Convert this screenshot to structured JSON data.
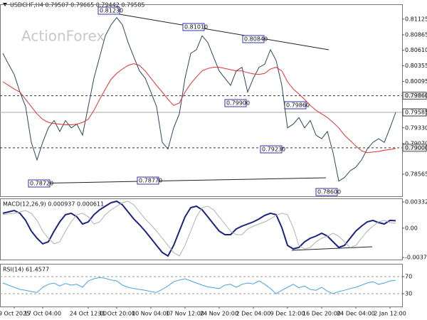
{
  "chart_data": [
    {
      "type": "line",
      "title": "USDCHF,H4  0.79507 0.79665 0.79442 0.79585",
      "watermark": "ActionForex",
      "categories": [
        null,
        null,
        "9 Oct 2025",
        null,
        null,
        null,
        null,
        "17 Oct 04:00",
        null,
        null,
        null,
        null,
        null,
        null,
        null,
        "24 Oct 12:00",
        null,
        null,
        null,
        null,
        "31 Oct 20:00",
        null,
        null,
        null,
        null,
        null,
        "10 Nov 04:00",
        null,
        null,
        null,
        null,
        null,
        "17 Nov 12:00",
        null,
        null,
        null,
        null,
        null,
        "24 Nov 20:00",
        null,
        null,
        null,
        null,
        null,
        "2 Dec 04:00",
        null,
        null,
        null,
        null,
        null,
        "9 Dec 12:00",
        null,
        null,
        null,
        null,
        null,
        "16 Dec 20:00",
        null,
        null,
        null,
        null,
        null,
        "24 Dec 04:00",
        null,
        null,
        null,
        null,
        null,
        "2 Jan 12:00",
        null
      ],
      "series": [
        {
          "color": "#2b4a5a",
          "values": [
            0.8056,
            0.8038,
            0.8021,
            0.7992,
            0.7968,
            0.7909,
            0.788,
            0.7909,
            0.7933,
            0.7945,
            0.7927,
            0.7945,
            0.7933,
            0.7939,
            0.7921,
            0.7968,
            0.8015,
            0.805,
            0.8085,
            0.8103,
            0.8115,
            0.8103,
            0.8074,
            0.805,
            0.8027,
            0.8015,
            0.7992,
            0.7968,
            0.7909,
            0.7898,
            0.7933,
            0.7956,
            0.8015,
            0.8056,
            0.8062,
            0.8085,
            0.8074,
            0.805,
            0.8027,
            0.8015,
            0.8003,
            0.8027,
            0.8033,
            0.7992,
            0.8015,
            0.8033,
            0.8038,
            0.8062,
            0.8044,
            0.8003,
            0.7933,
            0.7939,
            0.795,
            0.7933,
            0.7945,
            0.7921,
            0.7915,
            0.7927,
            0.7892,
            0.7845,
            0.7851,
            0.7862,
            0.7868,
            0.788,
            0.7898,
            0.7909,
            0.7915,
            0.7909,
            0.7933,
            0.79585
          ]
        },
        {
          "color": "#e03030",
          "values": [
            0.8009,
            0.8003,
            0.7997,
            0.7992,
            0.798,
            0.7968,
            0.7956,
            0.7947,
            0.7942,
            0.794,
            0.7939,
            0.7938,
            0.7938,
            0.7939,
            0.7942,
            0.7947,
            0.7962,
            0.798,
            0.7997,
            0.8013,
            0.8023,
            0.803,
            0.8036,
            0.8039,
            0.8036,
            0.8027,
            0.8015,
            0.8003,
            0.7992,
            0.798,
            0.797,
            0.7974,
            0.7992,
            0.8006,
            0.8017,
            0.8027,
            0.8031,
            0.8033,
            0.8033,
            0.8031,
            0.8029,
            0.8027,
            0.8027,
            0.8024,
            0.8022,
            0.8021,
            0.8023,
            0.803,
            0.8033,
            0.8027,
            0.8009,
            0.7997,
            0.7989,
            0.798,
            0.797,
            0.7962,
            0.7956,
            0.795,
            0.7942,
            0.7933,
            0.7921,
            0.7912,
            0.7903,
            0.7895,
            0.7892,
            0.7893,
            0.7894,
            0.7896,
            0.7897,
            0.7899
          ]
        }
      ],
      "ylim": [
        0.782,
        0.8137
      ],
      "yticks": [
        {
          "value": 0.81125,
          "label": "0.81125"
        },
        {
          "value": 0.80865,
          "label": "0.80865"
        },
        {
          "value": 0.8061,
          "label": "0.80610"
        },
        {
          "value": 0.80355,
          "label": "0.80355"
        },
        {
          "value": 0.80095,
          "label": "0.80095"
        },
        {
          "value": 0.7933,
          "label": "0.79330"
        },
        {
          "value": 0.7907,
          "label": "0.79070"
        },
        {
          "value": 0.78565,
          "label": "0.78565"
        }
      ],
      "levels": [
        {
          "value": 0.7986,
          "label": "0.79860"
        },
        {
          "value": 0.79,
          "label": "0.79000"
        }
      ],
      "last_price": {
        "value": 0.79585,
        "label": "0.79585"
      },
      "annotations": [
        "0.81230",
        "0.81010",
        "0.80840",
        "0.79900",
        "0.79860",
        "0.79230",
        "0.78600",
        "0.78770",
        "0.78720"
      ]
    },
    {
      "type": "line",
      "title": "MACD(12,26,9) 0.000937 0.000611",
      "series": [
        {
          "color": "#1a237e",
          "values": [
            0.00188,
            0.00206,
            0.00224,
            0.00188,
            0.00098,
            -0.00038,
            -0.00128,
            -0.002,
            -0.00173,
            -0.00038,
            0.00079,
            0.0017,
            0.00188,
            0.00143,
            0.00052,
            0.00079,
            0.0017,
            0.00233,
            0.00278,
            0.00323,
            0.00341,
            0.00296,
            0.00206,
            0.00116,
            0.00043,
            -0.00038,
            -0.00128,
            -0.00219,
            -0.00309,
            -0.00354,
            -0.00219,
            -0.00038,
            0.00143,
            0.0026,
            0.00278,
            0.00233,
            0.00143,
            0.00052,
            -0.00038,
            -0.00083,
            -0.00083,
            -0.00011,
            0.00025,
            0.00052,
            0.00079,
            0.00116,
            0.00161,
            0.00188,
            0.0017,
            7e-05,
            -0.00219,
            -0.00264,
            -0.00246,
            -0.00173,
            -0.00128,
            -0.00101,
            -0.00065,
            -0.00101,
            -0.00173,
            -0.00246,
            -0.00219,
            -0.00128,
            -0.00038,
            0.00025,
            0.00079,
            0.00098,
            0.0007,
            0.00052,
            0.00098,
            0.000937
          ]
        },
        {
          "color": "#b0b0b0",
          "values": [
            0.0017,
            0.0018,
            0.00188,
            0.00206,
            0.00224,
            0.00188,
            0.00098,
            -0.00038,
            -0.00128,
            -0.002,
            -0.00173,
            -0.00038,
            0.00079,
            0.0017,
            0.00188,
            0.00143,
            0.00052,
            0.00079,
            0.0017,
            0.00233,
            0.00278,
            0.00323,
            0.00341,
            0.00296,
            0.00206,
            0.00116,
            0.00043,
            -0.00038,
            -0.00128,
            -0.00219,
            -0.00309,
            -0.00354,
            -0.00219,
            -0.00038,
            0.00143,
            0.0026,
            0.00278,
            0.00233,
            0.00143,
            0.00052,
            -0.00038,
            -0.00083,
            -0.00083,
            -0.00011,
            0.00025,
            0.00052,
            0.00079,
            0.00116,
            0.00161,
            0.00188,
            0.0017,
            7e-05,
            -0.00219,
            -0.00264,
            -0.00246,
            -0.00173,
            -0.00128,
            -0.00101,
            -0.00065,
            -0.00101,
            -0.00173,
            -0.00246,
            -0.00219,
            -0.00128,
            -0.00038,
            0.00025,
            0.00079,
            0.00098,
            0.0007,
            0.000611
          ]
        }
      ],
      "ylim": [
        -0.00399,
        0.00377
      ],
      "yticks": [
        {
          "value": 0.003321,
          "label": "0.003321"
        },
        {
          "value": 0,
          "label": "0.00"
        },
        {
          "value": -0.003723,
          "label": "-0.003723"
        }
      ]
    },
    {
      "type": "line",
      "title": "RSI(14) 61.4577",
      "series": [
        {
          "color": "#4aa3df",
          "values": [
            55,
            50,
            45,
            40,
            38,
            35,
            33,
            45,
            52,
            55,
            48,
            54,
            50,
            52,
            45,
            60,
            65,
            68,
            66,
            62,
            60,
            50,
            45,
            42,
            40,
            38,
            35,
            33,
            40,
            48,
            58,
            62,
            65,
            60,
            55,
            50,
            46,
            44,
            42,
            50,
            52,
            45,
            52,
            55,
            53,
            60,
            52,
            42,
            30,
            38,
            45,
            52,
            44,
            48,
            40,
            38,
            45,
            36,
            30,
            35,
            38,
            42,
            45,
            50,
            55,
            58,
            52,
            55,
            60,
            61.4577
          ]
        }
      ],
      "ylim": [
        0,
        100
      ],
      "yticks": [
        70,
        30
      ]
    }
  ]
}
